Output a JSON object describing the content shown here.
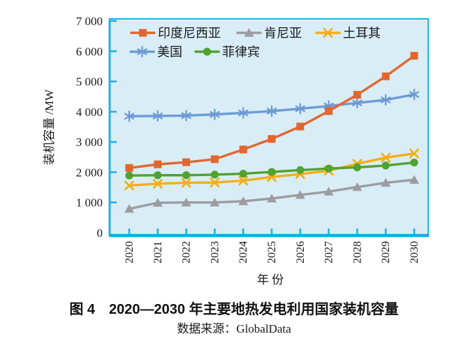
{
  "figure": {
    "caption": "图 4　2020—2030 年主要地热发电利用国家装机容量",
    "source_label": "数据来源：GlobalData"
  },
  "chart_data": {
    "type": "line",
    "title": "",
    "xlabel": "年 份",
    "ylabel": "装机容量 /MW",
    "x": [
      "2020",
      "2021",
      "2022",
      "2023",
      "2024",
      "2025",
      "2026",
      "2027",
      "2028",
      "2029",
      "2030"
    ],
    "ylim": [
      0,
      7000
    ],
    "ytick_interval": 1000,
    "ytick_labels": [
      "0",
      "1 000",
      "2 000",
      "3 000",
      "4 000",
      "5 000",
      "6 000",
      "7 000"
    ],
    "grid": false,
    "legend": {
      "position": "top-left-inside",
      "rows": [
        [
          "印度尼西亚",
          "肯尼亚",
          "土耳其"
        ],
        [
          "美国",
          "菲律宾"
        ]
      ]
    },
    "series": [
      {
        "id": "indonesia",
        "name": "印度尼西亚",
        "marker": "square",
        "color": "#e2662f",
        "values": [
          2140,
          2260,
          2330,
          2430,
          2750,
          3100,
          3510,
          4020,
          4560,
          5170,
          5850
        ]
      },
      {
        "id": "kenya",
        "name": "肯尼亚",
        "marker": "triangle",
        "color": "#9c9ca0",
        "values": [
          790,
          990,
          1000,
          1000,
          1040,
          1130,
          1250,
          1360,
          1510,
          1650,
          1750
        ]
      },
      {
        "id": "turkey",
        "name": "土耳其",
        "marker": "x-cross",
        "color": "#f3ae1b",
        "values": [
          1560,
          1620,
          1650,
          1660,
          1720,
          1840,
          1940,
          2050,
          2280,
          2480,
          2620
        ]
      },
      {
        "id": "usa",
        "name": "美国",
        "marker": "asterisk",
        "color": "#6d9bd3",
        "values": [
          3850,
          3860,
          3870,
          3910,
          3960,
          4020,
          4100,
          4190,
          4290,
          4390,
          4570
        ]
      },
      {
        "id": "philippines",
        "name": "菲律宾",
        "marker": "circle",
        "color": "#4fa330",
        "values": [
          1890,
          1900,
          1900,
          1920,
          1950,
          2010,
          2070,
          2120,
          2160,
          2220,
          2320
        ]
      }
    ],
    "styles": {
      "plot_bg": "#d9edf7",
      "axis_color": "#1fb1ea",
      "bottom_axis_color": "#0aaee8",
      "text_color": "#1a1a1a"
    }
  }
}
